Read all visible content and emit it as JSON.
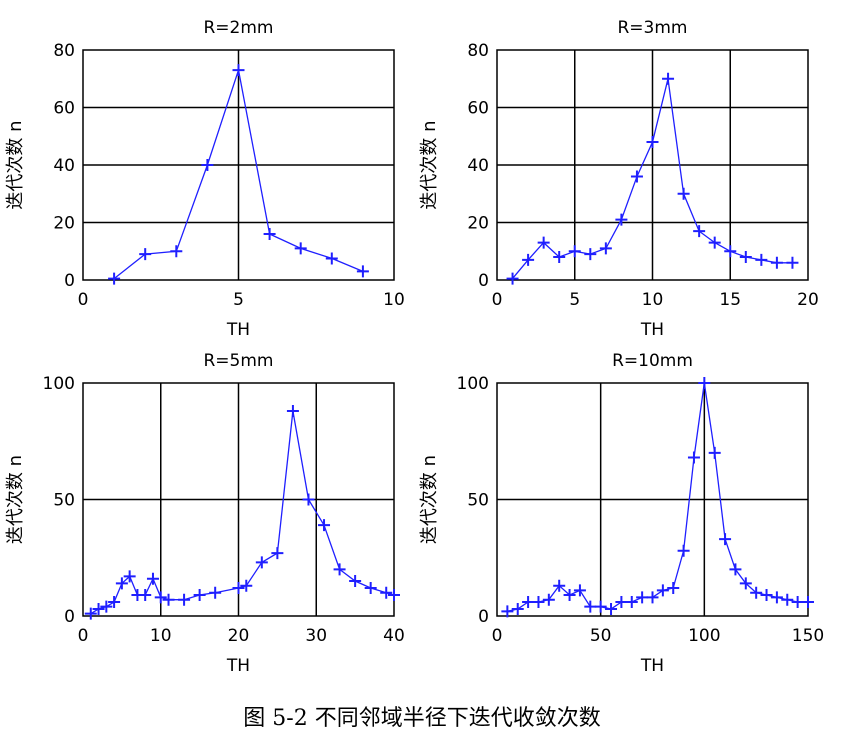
{
  "caption": "图 5-2 不同邻域半径下迭代收敛次数",
  "colors": {
    "series": "#1f1fff",
    "grid": "#000000",
    "axis": "#000000"
  },
  "chart_data": [
    {
      "type": "line",
      "title": "R=2mm",
      "xlabel": "TH",
      "ylabel": "迭代次数 n",
      "xlim": [
        0,
        10
      ],
      "ylim": [
        0,
        80
      ],
      "xticks": [
        0,
        5,
        10
      ],
      "yticks": [
        0,
        20,
        40,
        60,
        80
      ],
      "grid": true,
      "x": [
        1,
        2,
        3,
        4,
        5,
        6,
        7,
        8,
        9
      ],
      "y": [
        0.5,
        9,
        10,
        40,
        73,
        16,
        11,
        7.5,
        3
      ]
    },
    {
      "type": "line",
      "title": "R=3mm",
      "xlabel": "TH",
      "ylabel": "迭代次数 n",
      "xlim": [
        0,
        20
      ],
      "ylim": [
        0,
        80
      ],
      "xticks": [
        0,
        5,
        10,
        15,
        20
      ],
      "yticks": [
        0,
        20,
        40,
        60,
        80
      ],
      "grid": true,
      "x": [
        1,
        2,
        3,
        4,
        5,
        6,
        7,
        8,
        9,
        10,
        11,
        12,
        13,
        14,
        15,
        16,
        17,
        18,
        19
      ],
      "y": [
        0.5,
        7,
        13,
        8,
        10,
        9,
        11,
        21,
        36,
        48,
        70,
        30,
        17,
        13,
        10,
        8,
        7,
        6,
        6
      ]
    },
    {
      "type": "line",
      "title": "R=5mm",
      "xlabel": "TH",
      "ylabel": "迭代次数 n",
      "xlim": [
        0,
        40
      ],
      "ylim": [
        0,
        100
      ],
      "xticks": [
        0,
        10,
        20,
        30,
        40
      ],
      "yticks": [
        0,
        50,
        100
      ],
      "grid": true,
      "x": [
        1,
        2,
        3,
        4,
        5,
        6,
        7,
        8,
        9,
        10,
        11,
        13,
        15,
        17,
        20,
        21,
        23,
        25,
        27,
        29,
        31,
        33,
        35,
        37,
        39,
        40
      ],
      "y": [
        1,
        3,
        4,
        6,
        14,
        17,
        9,
        9,
        16,
        8,
        7,
        7,
        9,
        10,
        12,
        13,
        23,
        27,
        88,
        50,
        39,
        20,
        15,
        12,
        10,
        9
      ]
    },
    {
      "type": "line",
      "title": "R=10mm",
      "xlabel": "TH",
      "ylabel": "迭代次数 n",
      "xlim": [
        0,
        150
      ],
      "ylim": [
        0,
        100
      ],
      "xticks": [
        0,
        50,
        100,
        150
      ],
      "yticks": [
        0,
        50,
        100
      ],
      "grid": true,
      "x": [
        5,
        10,
        15,
        20,
        25,
        30,
        35,
        40,
        45,
        50,
        55,
        60,
        65,
        70,
        75,
        80,
        85,
        90,
        95,
        100,
        105,
        110,
        115,
        120,
        125,
        130,
        135,
        140,
        145,
        150
      ],
      "y": [
        2,
        3,
        6,
        6,
        7,
        13,
        9,
        11,
        4,
        4,
        3,
        6,
        6,
        8,
        8,
        11,
        12,
        28,
        68,
        100,
        70,
        33,
        20,
        14,
        10,
        9,
        8,
        7,
        6,
        6
      ]
    }
  ]
}
